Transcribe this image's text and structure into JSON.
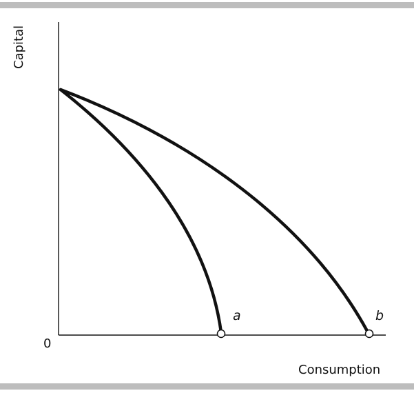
{
  "figure": {
    "y_axis_label": "Capital",
    "x_axis_label": "Consumption",
    "origin_label": "0",
    "curves": [
      {
        "label": "a"
      },
      {
        "label": "b"
      }
    ]
  },
  "colors": {
    "ink": "#111111",
    "rule": "#bdbdbd",
    "background": "#ffffff"
  }
}
